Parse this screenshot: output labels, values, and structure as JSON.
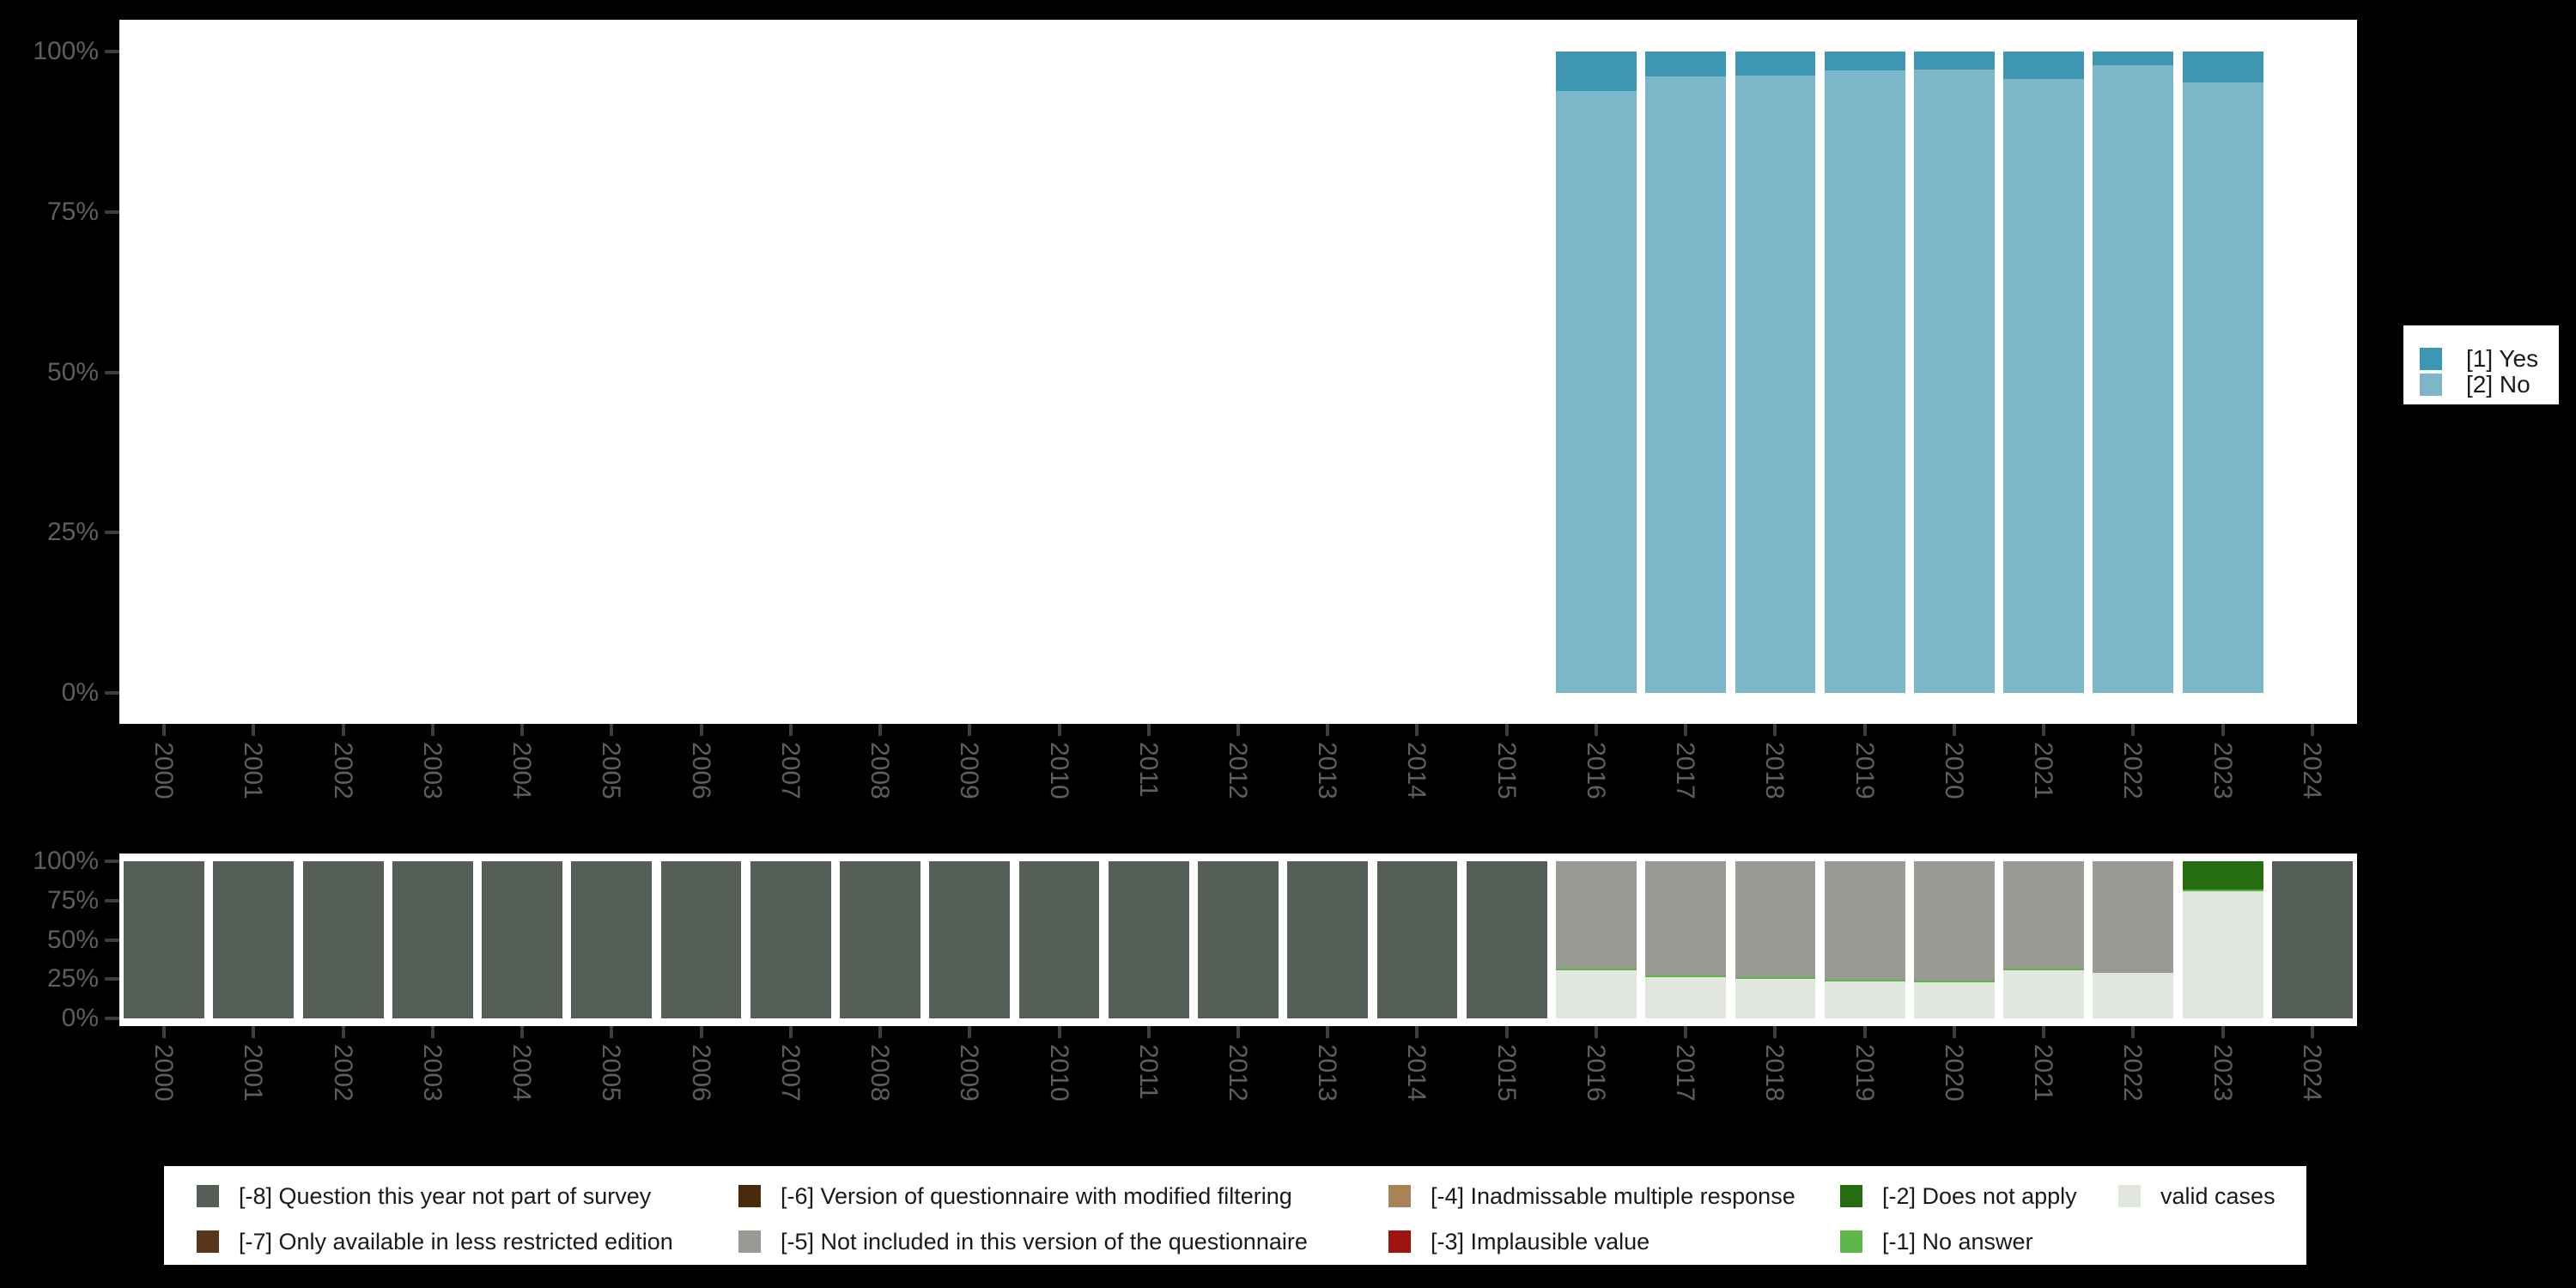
{
  "page": {
    "background": "#000000",
    "axis_text_color": "#5e5e5e",
    "tick_color": "#3d3d3d",
    "plot_background": "#ffffff"
  },
  "axes": {
    "yticks_labels": [
      "0%",
      "25%",
      "50%",
      "75%",
      "100%"
    ],
    "yticks_values": [
      0,
      25,
      50,
      75,
      100
    ]
  },
  "chart_data": [
    {
      "type": "bar",
      "stacked": true,
      "percent_scale": true,
      "title": "",
      "xlabel": "",
      "ylabel": "",
      "ylim": [
        0,
        100
      ],
      "grid": false,
      "legend_position": "right",
      "categories": [
        "2000",
        "2001",
        "2002",
        "2003",
        "2004",
        "2005",
        "2006",
        "2007",
        "2008",
        "2009",
        "2010",
        "2011",
        "2012",
        "2013",
        "2014",
        "2015",
        "2016",
        "2017",
        "2018",
        "2019",
        "2020",
        "2021",
        "2022",
        "2023",
        "2024"
      ],
      "series": [
        {
          "name": "[1] Yes",
          "color": "#3d96b2",
          "values": [
            0,
            0,
            0,
            0,
            0,
            0,
            0,
            0,
            0,
            0,
            0,
            0,
            0,
            0,
            0,
            0,
            6.1,
            3.9,
            3.8,
            2.9,
            2.8,
            4.3,
            2.2,
            4.8,
            0
          ]
        },
        {
          "name": "[2] No",
          "color": "#7cb7c9",
          "values": [
            0,
            0,
            0,
            0,
            0,
            0,
            0,
            0,
            0,
            0,
            0,
            0,
            0,
            0,
            0,
            0,
            93.9,
            96.1,
            96.2,
            97.1,
            97.2,
            95.7,
            97.8,
            95.2,
            0
          ]
        }
      ]
    },
    {
      "type": "bar",
      "stacked": true,
      "percent_scale": true,
      "title": "",
      "xlabel": "",
      "ylabel": "",
      "ylim": [
        0,
        100
      ],
      "grid": false,
      "legend_position": "bottom",
      "categories": [
        "2000",
        "2001",
        "2002",
        "2003",
        "2004",
        "2005",
        "2006",
        "2007",
        "2008",
        "2009",
        "2010",
        "2011",
        "2012",
        "2013",
        "2014",
        "2015",
        "2016",
        "2017",
        "2018",
        "2019",
        "2020",
        "2021",
        "2022",
        "2023",
        "2024"
      ],
      "series": [
        {
          "name": "[-8] Question this year not part of survey",
          "color": "#565f57",
          "values": [
            100,
            100,
            100,
            100,
            100,
            100,
            100,
            100,
            100,
            100,
            100,
            100,
            100,
            100,
            100,
            100,
            0,
            0,
            0,
            0,
            0,
            0,
            0,
            0,
            100
          ]
        },
        {
          "name": "[-7] Only available in less restricted edition",
          "color": "#57351a",
          "values": [
            0,
            0,
            0,
            0,
            0,
            0,
            0,
            0,
            0,
            0,
            0,
            0,
            0,
            0,
            0,
            0,
            0,
            0,
            0,
            0,
            0,
            0,
            0,
            0,
            0
          ]
        },
        {
          "name": "[-6] Version of questionnaire with modified filtering",
          "color": "#4a2a0c",
          "values": [
            0,
            0,
            0,
            0,
            0,
            0,
            0,
            0,
            0,
            0,
            0,
            0,
            0,
            0,
            0,
            0,
            0,
            0,
            0,
            0,
            0,
            0,
            0,
            0,
            0
          ]
        },
        {
          "name": "[-5] Not included in this version of the questionnaire",
          "color": "#979b93",
          "values": [
            0,
            0,
            0,
            0,
            0,
            0,
            0,
            0,
            0,
            0,
            0,
            0,
            0,
            0,
            0,
            0,
            68.3,
            72.6,
            73.5,
            75.2,
            75.7,
            68.3,
            71.2,
            0,
            0
          ]
        },
        {
          "name": "[-4] Inadmissable multiple response",
          "color": "#aa8258",
          "values": [
            0,
            0,
            0,
            0,
            0,
            0,
            0,
            0,
            0,
            0,
            0,
            0,
            0,
            0,
            0,
            0,
            0,
            0,
            0,
            0,
            0,
            0,
            0,
            0,
            0
          ]
        },
        {
          "name": "[-3] Implausible value",
          "color": "#9d130d",
          "values": [
            0,
            0,
            0,
            0,
            0,
            0,
            0,
            0,
            0,
            0,
            0,
            0,
            0,
            0,
            0,
            0,
            0,
            0,
            0,
            0,
            0,
            0,
            0,
            0,
            0
          ]
        },
        {
          "name": "[-2] Does not apply",
          "color": "#266d12",
          "values": [
            0,
            0,
            0,
            0,
            0,
            0,
            0,
            0,
            0,
            0,
            0,
            0,
            0,
            0,
            0,
            0,
            0,
            0,
            0,
            0,
            0,
            0,
            0,
            17.9,
            0
          ]
        },
        {
          "name": "[-1] No answer",
          "color": "#5cb648",
          "values": [
            0,
            0,
            0,
            0,
            0,
            0,
            0,
            0,
            0,
            0,
            0,
            0,
            0,
            0,
            0,
            0,
            1.1,
            1.1,
            1.1,
            1.1,
            1.3,
            1.1,
            0,
            1.1,
            0
          ]
        },
        {
          "name": "valid cases",
          "color": "#e1e6df",
          "values": [
            0,
            0,
            0,
            0,
            0,
            0,
            0,
            0,
            0,
            0,
            0,
            0,
            0,
            0,
            0,
            0,
            30.6,
            26.3,
            25.4,
            23.7,
            23.0,
            30.6,
            28.8,
            81.0,
            0
          ]
        }
      ]
    }
  ]
}
